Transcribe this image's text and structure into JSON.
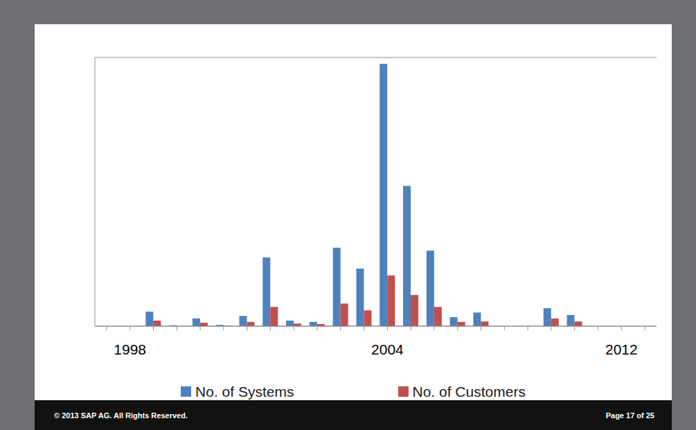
{
  "chart_data": {
    "type": "bar",
    "categories": [
      null,
      "1998",
      null,
      null,
      null,
      null,
      null,
      null,
      null,
      null,
      null,
      null,
      "2004",
      null,
      null,
      null,
      null,
      null,
      null,
      null,
      null,
      null,
      "2012",
      null
    ],
    "series": [
      {
        "name": "No. of Systems",
        "color": "#4f81bd",
        "values": [
          0,
          0,
          0.34,
          0.02,
          0.18,
          0.03,
          0.24,
          1.61,
          0.13,
          0.1,
          1.84,
          1.35,
          6.15,
          3.29,
          1.77,
          0.21,
          0.32,
          0,
          0,
          0.42,
          0.26,
          0,
          0,
          0
        ]
      },
      {
        "name": "No. of Customers",
        "color": "#c0504d",
        "values": [
          0,
          0,
          0.13,
          0,
          0.08,
          0.01,
          0.1,
          0.45,
          0.06,
          0.05,
          0.53,
          0.37,
          1.19,
          0.73,
          0.45,
          0.1,
          0.11,
          0,
          0,
          0.18,
          0.11,
          0,
          0,
          0
        ]
      }
    ],
    "ylim": [
      0,
      6.3
    ],
    "yticks": [
      0,
      1,
      2,
      3,
      4,
      5,
      6
    ],
    "grid": true,
    "tick_labels": "x",
    "legend": "bottom"
  },
  "footer": {
    "left": "© 2013 SAP AG. All Rights Reserved.",
    "right": "Page 17 of 25"
  }
}
